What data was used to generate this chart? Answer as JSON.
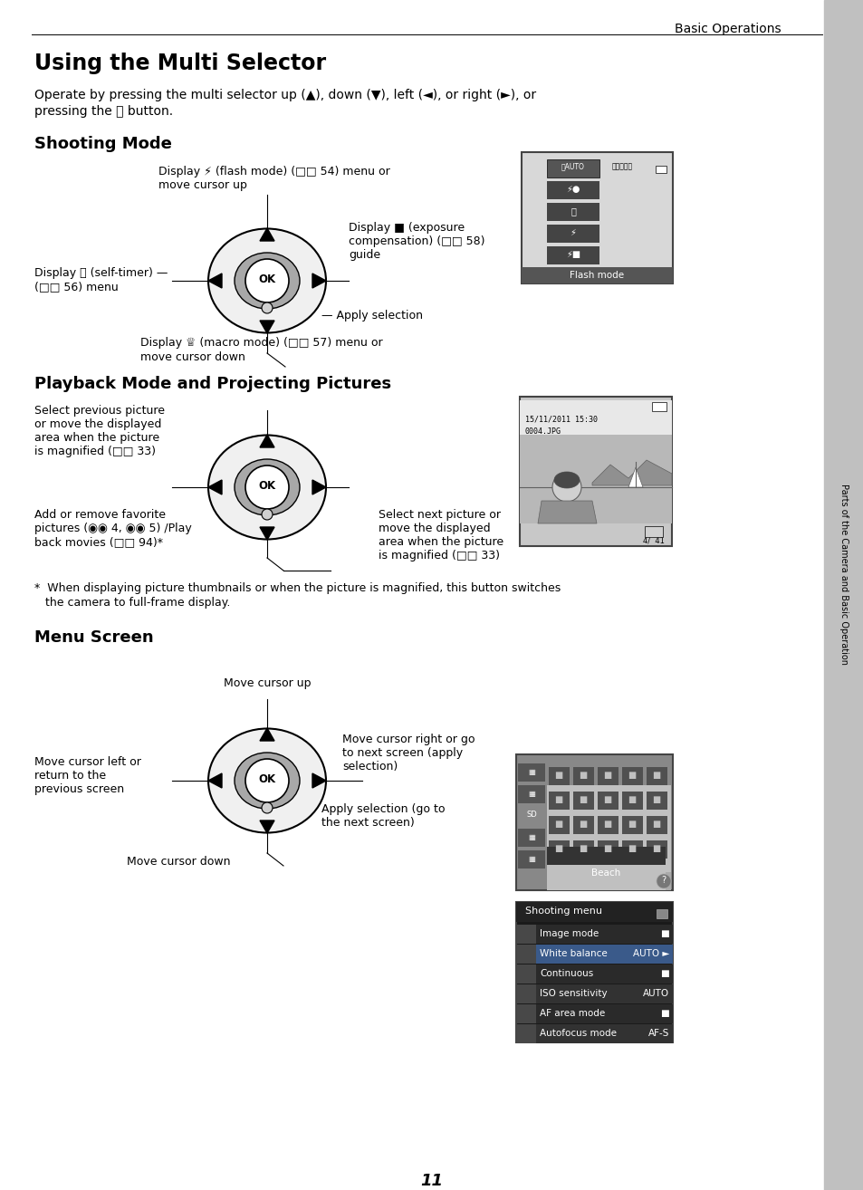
{
  "title": "Using the Multi Selector",
  "section_header": "Basic Operations",
  "intro_line1": "Operate by pressing the multi selector up (▲), down (▼), left (◄), or right (►), or",
  "intro_line2": "pressing the Ⓨ button.",
  "section1": "Shooting Mode",
  "section2": "Playback Mode and Projecting Pictures",
  "section3": "Menu Screen",
  "footnote_line1": "*  When displaying picture thumbnails or when the picture is magnified, this button switches",
  "footnote_line2": "   the camera to full-frame display.",
  "bg_color": "#ffffff",
  "text_color": "#000000",
  "sidebar_color": "#c0c0c0",
  "page_number": "11"
}
